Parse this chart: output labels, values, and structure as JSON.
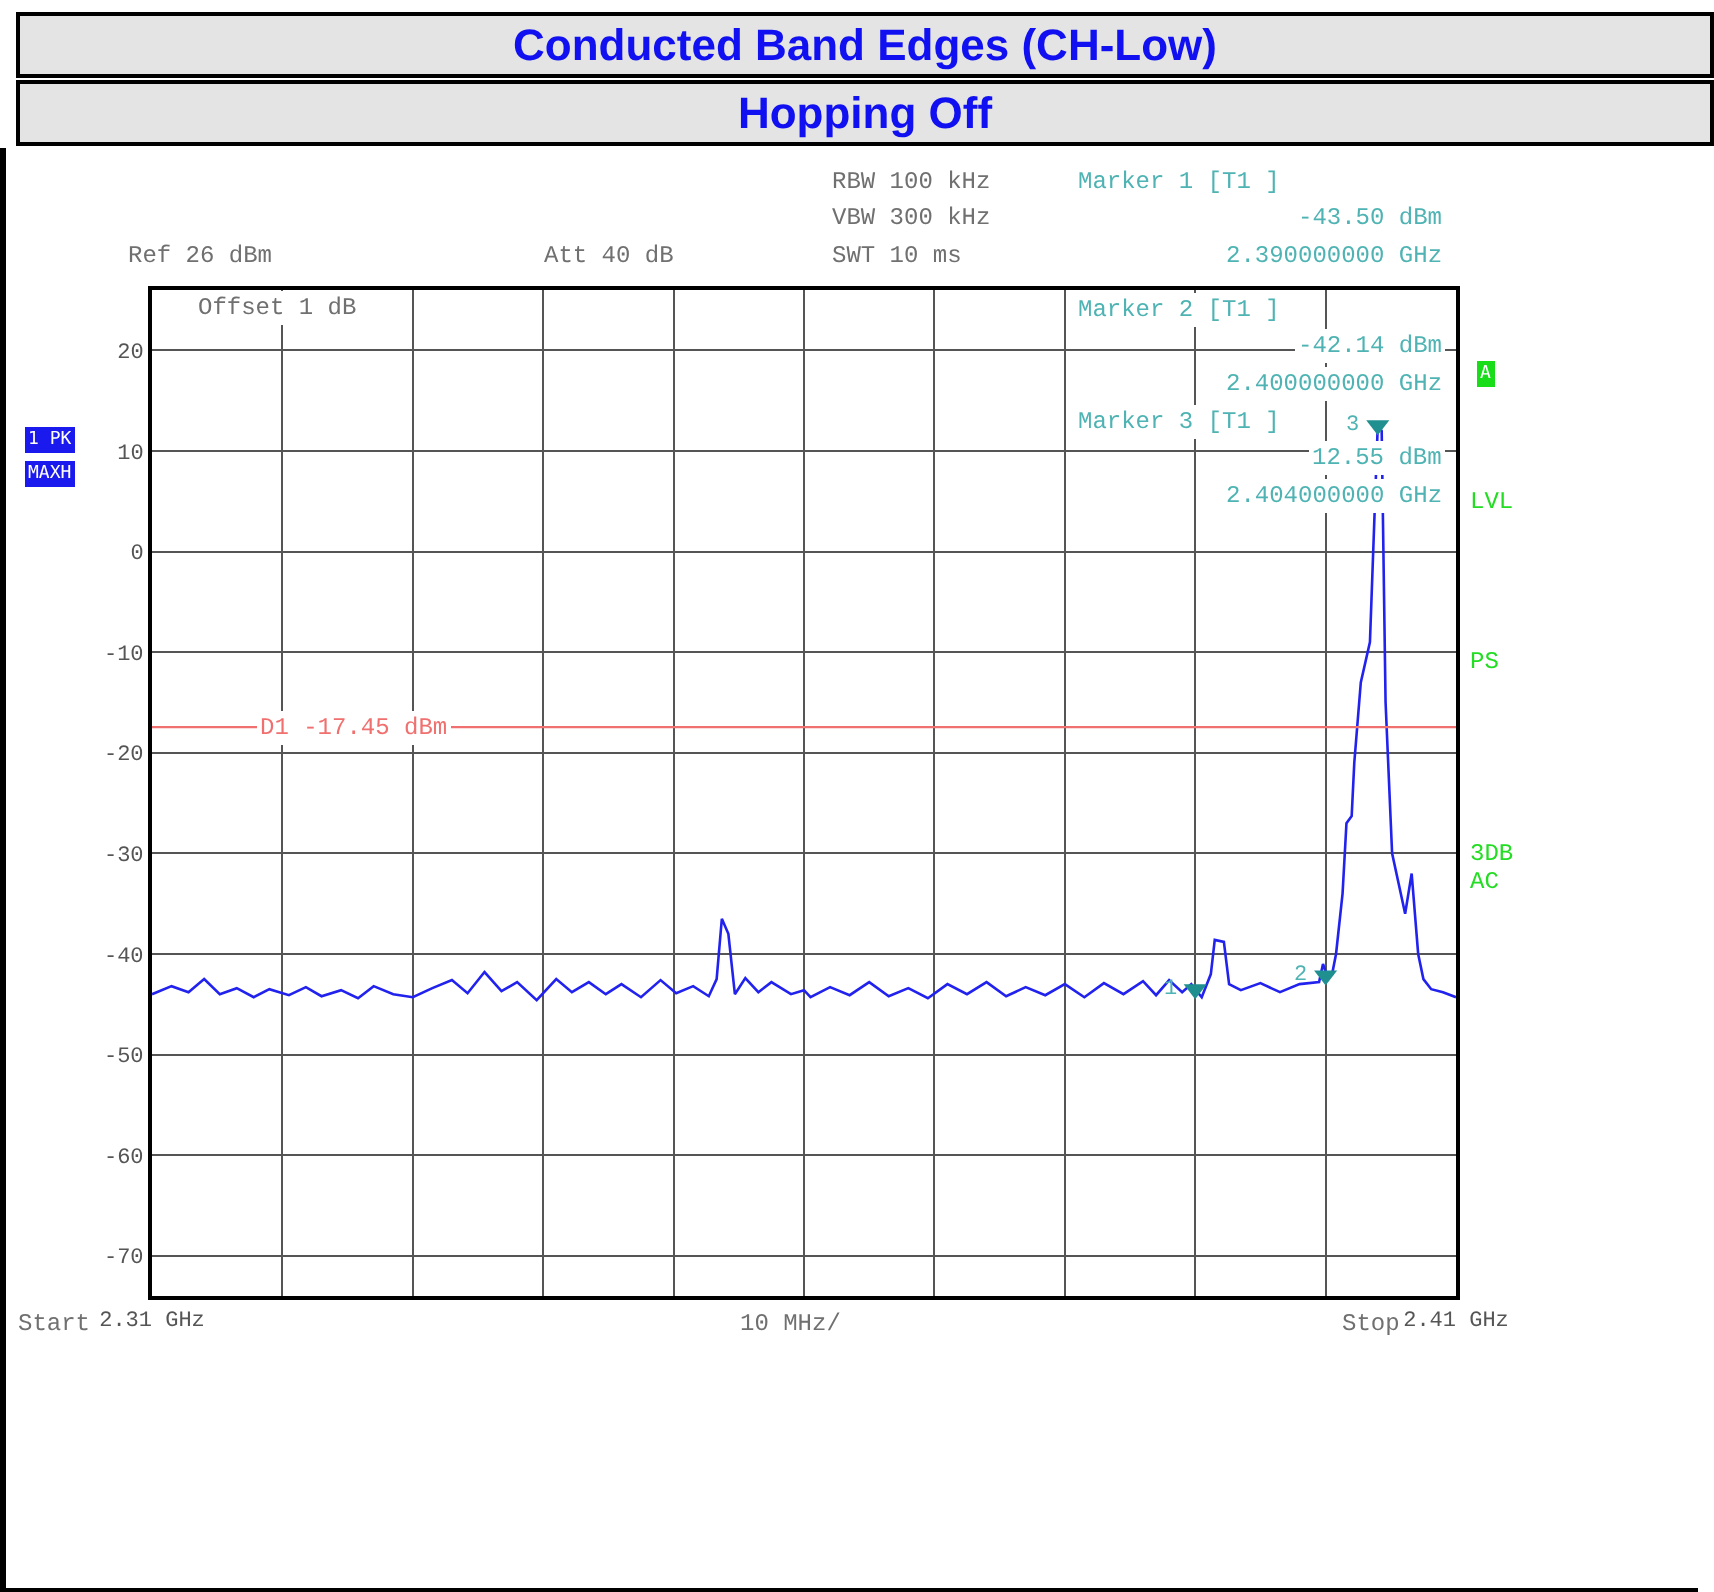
{
  "chart_data": {
    "type": "line",
    "title": "Conducted Band Edges (CH-Low)",
    "subtitle": "Hopping Off",
    "xlim": [
      2.31,
      2.41
    ],
    "xticks": [
      {
        "value": 2.31,
        "label": "2.31 GHz"
      },
      {
        "value": 2.32,
        "label": null
      },
      {
        "value": 2.33,
        "label": null
      },
      {
        "value": 2.34,
        "label": null
      },
      {
        "value": 2.35,
        "label": null
      },
      {
        "value": 2.36,
        "label": null
      },
      {
        "value": 2.37,
        "label": null
      },
      {
        "value": 2.38,
        "label": null
      },
      {
        "value": 2.39,
        "label": null
      },
      {
        "value": 2.4,
        "label": null
      },
      {
        "value": 2.41,
        "label": "2.41 GHz"
      }
    ],
    "ylim": [
      -74,
      26
    ],
    "yticks": [
      20,
      10,
      0,
      -10,
      -20,
      -30,
      -40,
      -50,
      -60,
      -70
    ],
    "grid": true,
    "line_style": "solid",
    "series": [
      {
        "color": "#2222ee",
        "marker": "none",
        "x": [
          2.31,
          2.3115,
          2.3128,
          2.314,
          2.3152,
          2.3165,
          2.3178,
          2.319,
          2.3205,
          2.3218,
          2.323,
          2.3245,
          2.3258,
          2.327,
          2.3285,
          2.33,
          2.3315,
          2.333,
          2.3342,
          2.3355,
          2.3368,
          2.338,
          2.3395,
          2.341,
          2.3422,
          2.3435,
          2.3448,
          2.346,
          2.3475,
          2.349,
          2.3502,
          2.3515,
          2.3527,
          2.3533,
          2.3537,
          2.3542,
          2.3547,
          2.3555,
          2.3565,
          2.3575,
          2.359,
          2.36,
          2.3605,
          2.362,
          2.3635,
          2.365,
          2.3665,
          2.368,
          2.3695,
          2.371,
          2.3725,
          2.374,
          2.3755,
          2.377,
          2.3785,
          2.38,
          2.3815,
          2.383,
          2.3845,
          2.386,
          2.387,
          2.388,
          2.389,
          2.3897,
          2.39,
          2.3905,
          2.3912,
          2.3915,
          2.3922,
          2.3926,
          2.3935,
          2.395,
          2.3965,
          2.398,
          2.3995,
          2.3998,
          2.4001,
          2.4005,
          2.4008,
          2.4013,
          2.4016,
          2.402,
          2.4022,
          2.4027,
          2.4034,
          2.404,
          2.4043,
          2.4046,
          2.4051,
          2.4056,
          2.4061,
          2.4066,
          2.4071,
          2.4075,
          2.4081,
          2.409,
          2.41
        ],
        "values": [
          -44.0,
          -43.2,
          -43.8,
          -42.5,
          -44.0,
          -43.4,
          -44.3,
          -43.5,
          -44.1,
          -43.3,
          -44.2,
          -43.6,
          -44.4,
          -43.2,
          -44.0,
          -44.3,
          -43.4,
          -42.6,
          -43.9,
          -41.8,
          -43.7,
          -42.8,
          -44.6,
          -42.5,
          -43.8,
          -42.8,
          -44.0,
          -43.0,
          -44.3,
          -42.6,
          -43.9,
          -43.2,
          -44.2,
          -42.5,
          -36.5,
          -38.0,
          -44.0,
          -42.4,
          -43.8,
          -42.8,
          -44.0,
          -43.6,
          -44.3,
          -43.3,
          -44.1,
          -42.8,
          -44.2,
          -43.4,
          -44.4,
          -43.0,
          -44.0,
          -42.8,
          -44.2,
          -43.3,
          -44.1,
          -43.0,
          -44.3,
          -42.9,
          -44.0,
          -42.7,
          -44.1,
          -42.6,
          -43.8,
          -43.0,
          -43.5,
          -44.3,
          -42.0,
          -38.6,
          -38.8,
          -43.0,
          -43.6,
          -42.9,
          -43.8,
          -43.0,
          -42.8,
          -41.0,
          -42.1,
          -42.0,
          -40.0,
          -34.0,
          -27.0,
          -26.3,
          -21.0,
          -13.0,
          -9.0,
          12.55,
          12.0,
          -15.0,
          -30.0,
          -33.0,
          -36.0,
          -32.0,
          -40.0,
          -42.5,
          -43.5,
          -43.8,
          -44.3
        ]
      },
      {
        "type": "scatter",
        "color": "#1f8f8f",
        "marker": "triangle",
        "x": [
          2.39,
          2.4,
          2.404
        ],
        "values": [
          -43.5,
          -42.14,
          12.55
        ]
      }
    ],
    "ref_lines": [
      {
        "axis": "y",
        "value": -17.45,
        "label": "D1 -17.45 dBm",
        "color": "#f07070"
      }
    ],
    "annotations": [
      "Ref 26 dBm",
      "Att 40 dB",
      "RBW 100 kHz",
      "VBW 300 kHz",
      "SWT 10 ms",
      "Marker 1 [T1 ]",
      "-43.50 dBm",
      "2.390000000 GHz",
      "Marker 2 [T1 ]",
      "-42.14 dBm",
      "2.400000000 GHz",
      "Marker 3 [T1 ]",
      "12.55 dBm",
      "2.404000000 GHz",
      "Offset 1 dB",
      "10 MHz/",
      "Start",
      "Stop",
      "1 PK",
      "MAXH",
      "A",
      "LVL",
      "PS",
      "3DB",
      "AC",
      {
        "text": "1",
        "x": 2.39,
        "y": -43.5
      },
      {
        "text": "2",
        "x": 2.4,
        "y": -42.14
      },
      {
        "text": "3",
        "x": 2.404,
        "y": 12.55
      }
    ]
  }
}
